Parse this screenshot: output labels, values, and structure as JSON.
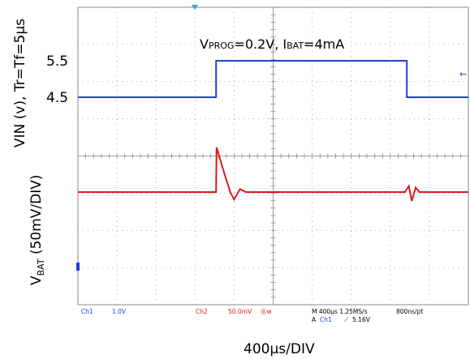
{
  "chart_data": {
    "type": "line",
    "x_unit": "µs",
    "x_range": [
      0,
      4000
    ],
    "x_div": "400µs/DIV",
    "annotation": {
      "v_main": "V",
      "v_sub": "PROG",
      "v_rest": "=0.2V, I",
      "i_sub": "BAT",
      "i_rest": "=4mA"
    },
    "y_top_label": "VIN (v), Tr=Tf=5µs",
    "y_bottom_label_main": "V",
    "y_bottom_label_sub": "BAT",
    "y_bottom_label_rest": " (50mV/DIV)",
    "yticks": [
      "5.5",
      "4.5"
    ],
    "series": [
      {
        "color": "#1f3fd6",
        "x": [
          0,
          1415,
          1415,
          3370,
          3370,
          4000
        ],
        "y": [
          4.5,
          4.5,
          5.5,
          5.5,
          4.5,
          4.5
        ]
      },
      {
        "color": "#e01818",
        "x": [
          0,
          1415,
          1420,
          1500,
          1560,
          1600,
          1660,
          1720,
          1800,
          3350,
          3390,
          3420,
          3460,
          3500,
          4000
        ],
        "y": [
          0,
          0,
          60,
          25,
          0,
          -10,
          4,
          0,
          0,
          0,
          8,
          -12,
          6,
          0,
          0
        ]
      }
    ],
    "status": {
      "ch1": "Ch1",
      "ch1_scale": "1.0V",
      "ch2": "Ch2",
      "ch2_scale": "50.0mV",
      "ch2_bw": "Ⓑw",
      "timebase": "M 400µs 1.25MS/s",
      "record": "800ns/pt",
      "trig_a": "A",
      "trig_ch": "Ch1",
      "trig_slope": "⟋",
      "trig_level": "5.16V"
    }
  }
}
